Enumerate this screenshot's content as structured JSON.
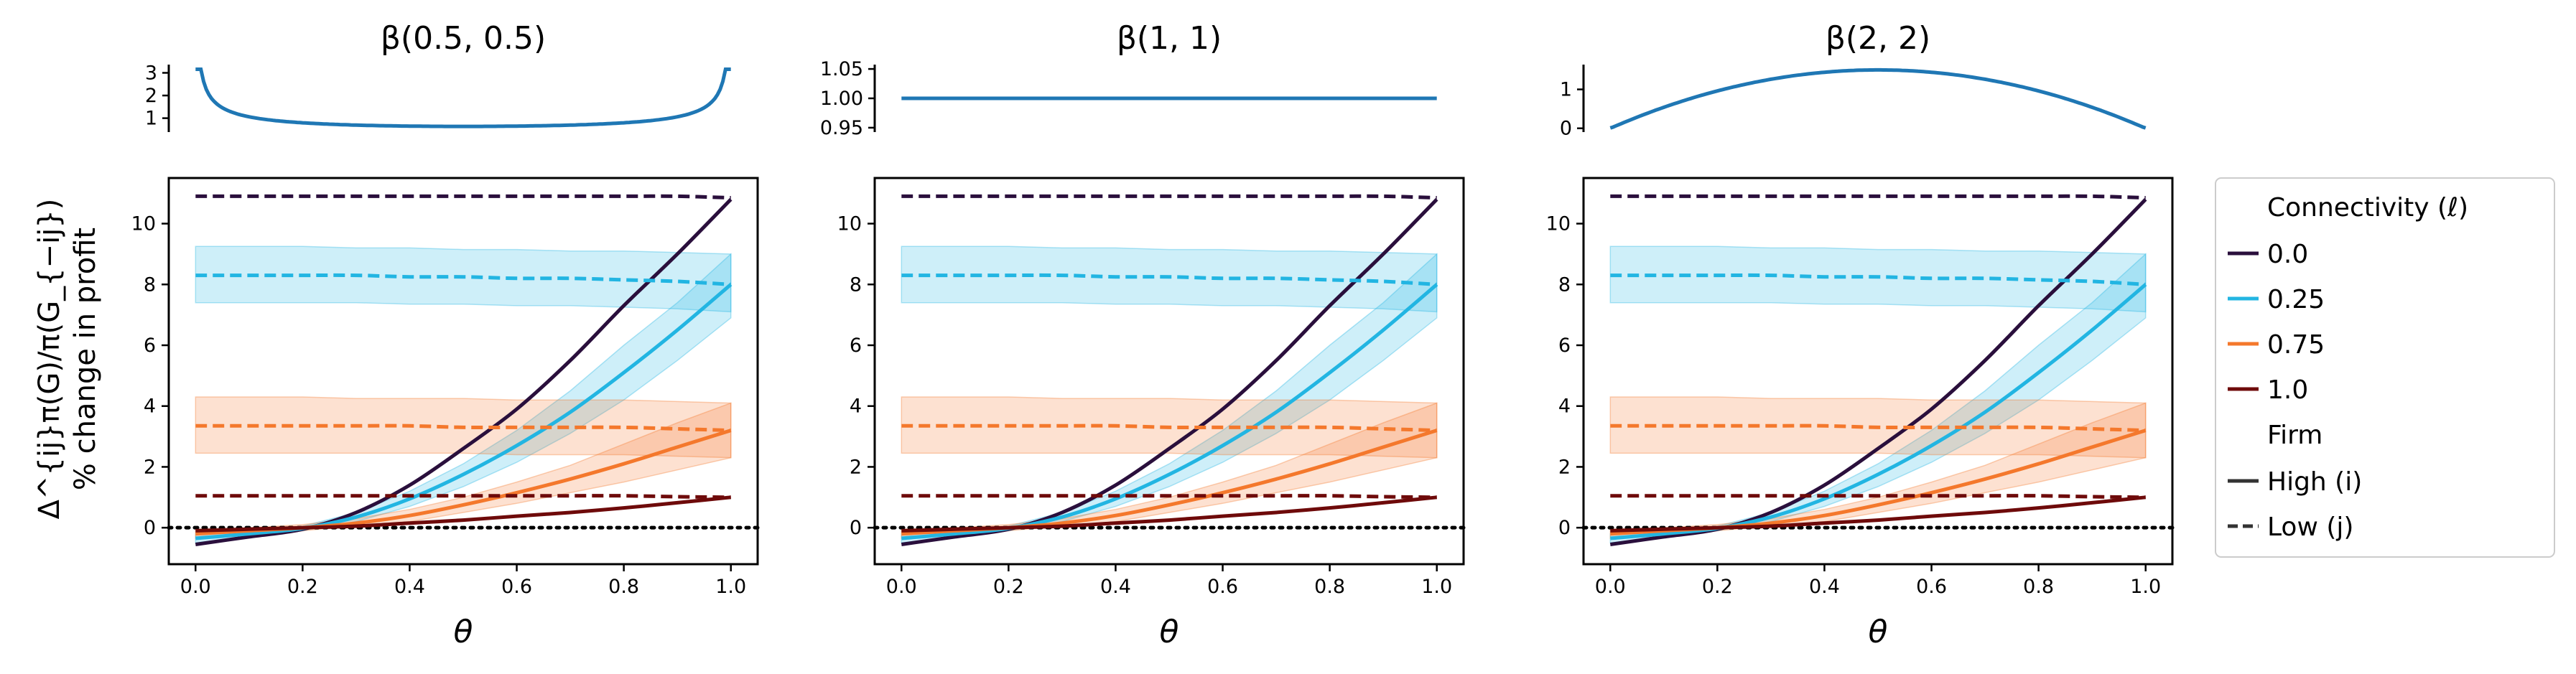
{
  "figure": {
    "ylabel_math": "Δ^{ij}π(G)/π(G_{−ij})",
    "ylabel_text": "% change in profit"
  },
  "legend": {
    "title1": "Connectivity (ℓ)",
    "title2": "Firm",
    "connectivity": [
      {
        "label": "0.0",
        "color": "#2a0f3c"
      },
      {
        "label": "0.25",
        "color": "#22b5e2"
      },
      {
        "label": "0.75",
        "color": "#f4782c"
      },
      {
        "label": "1.0",
        "color": "#6e0a0a"
      }
    ],
    "firm": [
      {
        "label": "High (i)",
        "style": "solid"
      },
      {
        "label": "Low (j)",
        "style": "dashed"
      }
    ]
  },
  "chart_data": [
    {
      "type": "line",
      "panel": 1,
      "role": "density",
      "title": "β(0.5, 0.5)",
      "alpha": 0.5,
      "beta": 0.5,
      "yticks": [
        "1",
        "2",
        "3"
      ],
      "ylim": [
        0.45,
        3.3
      ],
      "color": "#1f77b4"
    },
    {
      "type": "line",
      "panel": 2,
      "role": "density",
      "title": "β(1, 1)",
      "alpha": 1,
      "beta": 1,
      "yticks": [
        "0.95",
        "1.00",
        "1.05"
      ],
      "ylim": [
        0.945,
        1.055
      ],
      "color": "#1f77b4"
    },
    {
      "type": "line",
      "panel": 3,
      "role": "density",
      "title": "β(2, 2)",
      "alpha": 2,
      "beta": 2,
      "yticks": [
        "0",
        "1"
      ],
      "ylim": [
        -0.06,
        1.6
      ],
      "color": "#1f77b4"
    },
    {
      "type": "line",
      "role": "profit-change",
      "xlabel": "θ",
      "xlim": [
        -0.05,
        1.05
      ],
      "ylim": [
        -1.2,
        11.5
      ],
      "xticks": [
        "0.0",
        "0.2",
        "0.4",
        "0.6",
        "0.8",
        "1.0"
      ],
      "yticks": [
        "0",
        "2",
        "4",
        "6",
        "8",
        "10"
      ],
      "reference_line": {
        "y": 0,
        "style": "dotted"
      },
      "x": [
        0.0,
        0.1,
        0.2,
        0.3,
        0.4,
        0.5,
        0.6,
        0.7,
        0.8,
        0.9,
        1.0
      ],
      "series": [
        {
          "name": "0.0",
          "firm": "High (i)",
          "color": "#2a0f3c",
          "style": "solid",
          "values": [
            -0.55,
            -0.3,
            -0.05,
            0.5,
            1.4,
            2.6,
            3.9,
            5.5,
            7.3,
            9.0,
            10.8
          ]
        },
        {
          "name": "0.0",
          "firm": "Low (j)",
          "color": "#2a0f3c",
          "style": "dashed",
          "values": [
            10.9,
            10.9,
            10.9,
            10.9,
            10.9,
            10.9,
            10.9,
            10.9,
            10.9,
            10.9,
            10.85
          ]
        },
        {
          "name": "0.25",
          "firm": "High (i)",
          "color": "#22b5e2",
          "style": "solid",
          "values": [
            -0.35,
            -0.2,
            -0.02,
            0.35,
            0.95,
            1.75,
            2.7,
            3.8,
            5.1,
            6.5,
            8.0
          ],
          "band_lo": [
            -0.5,
            -0.3,
            -0.1,
            0.2,
            0.7,
            1.35,
            2.15,
            3.1,
            4.2,
            5.5,
            6.9
          ],
          "band_hi": [
            -0.2,
            -0.1,
            0.05,
            0.5,
            1.2,
            2.1,
            3.2,
            4.5,
            6.0,
            7.4,
            9.0
          ]
        },
        {
          "name": "0.25",
          "firm": "Low (j)",
          "color": "#22b5e2",
          "style": "dashed",
          "values": [
            8.3,
            8.3,
            8.3,
            8.3,
            8.25,
            8.25,
            8.2,
            8.2,
            8.15,
            8.1,
            8.0
          ],
          "band_lo": [
            7.4,
            7.4,
            7.4,
            7.4,
            7.35,
            7.35,
            7.3,
            7.3,
            7.25,
            7.2,
            7.1
          ],
          "band_hi": [
            9.25,
            9.25,
            9.25,
            9.2,
            9.2,
            9.15,
            9.15,
            9.1,
            9.1,
            9.05,
            9.0
          ]
        },
        {
          "name": "0.75",
          "firm": "High (i)",
          "color": "#f4782c",
          "style": "solid",
          "values": [
            -0.2,
            -0.1,
            0.0,
            0.15,
            0.4,
            0.75,
            1.15,
            1.6,
            2.1,
            2.65,
            3.2
          ],
          "band_lo": [
            -0.35,
            -0.2,
            -0.1,
            0.05,
            0.2,
            0.5,
            0.8,
            1.15,
            1.5,
            1.9,
            2.3
          ],
          "band_hi": [
            -0.05,
            0.0,
            0.1,
            0.3,
            0.6,
            1.0,
            1.5,
            2.05,
            2.75,
            3.45,
            4.1
          ]
        },
        {
          "name": "0.75",
          "firm": "Low (j)",
          "color": "#f4782c",
          "style": "dashed",
          "values": [
            3.35,
            3.35,
            3.35,
            3.35,
            3.35,
            3.3,
            3.3,
            3.3,
            3.3,
            3.25,
            3.2
          ],
          "band_lo": [
            2.45,
            2.45,
            2.45,
            2.45,
            2.45,
            2.45,
            2.4,
            2.4,
            2.4,
            2.35,
            2.3
          ],
          "band_hi": [
            4.3,
            4.3,
            4.3,
            4.25,
            4.25,
            4.25,
            4.2,
            4.2,
            4.2,
            4.15,
            4.1
          ]
        },
        {
          "name": "1.0",
          "firm": "High (i)",
          "color": "#6e0a0a",
          "style": "solid",
          "values": [
            -0.1,
            -0.05,
            0.0,
            0.05,
            0.15,
            0.25,
            0.38,
            0.5,
            0.65,
            0.82,
            1.0
          ]
        },
        {
          "name": "1.0",
          "firm": "Low (j)",
          "color": "#6e0a0a",
          "style": "dashed",
          "values": [
            1.05,
            1.05,
            1.05,
            1.05,
            1.05,
            1.05,
            1.05,
            1.05,
            1.05,
            1.02,
            1.0
          ]
        }
      ]
    }
  ]
}
